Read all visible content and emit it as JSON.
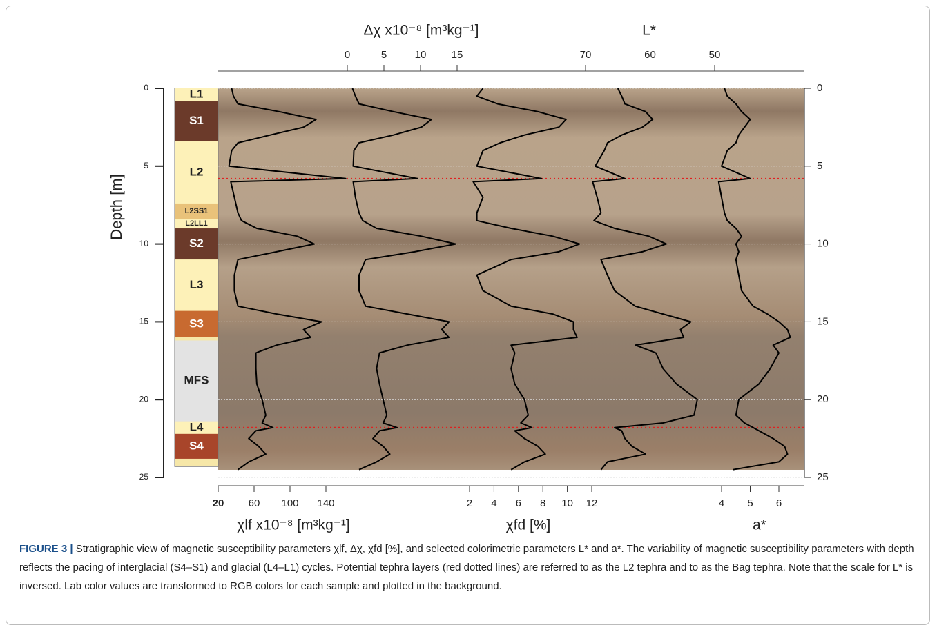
{
  "chart_data": {
    "type": "profile",
    "y_label": "Depth [m]",
    "ylim": [
      0,
      25
    ],
    "yticks": [
      0,
      5,
      10,
      15,
      20,
      25
    ],
    "grid": true,
    "depth": [
      0,
      0.5,
      1,
      1.5,
      2,
      2.5,
      3,
      3.5,
      4,
      5,
      5.8,
      6,
      7,
      8,
      8.5,
      9,
      9.5,
      10,
      10.5,
      11,
      12,
      13,
      14,
      14.5,
      15,
      15.5,
      16,
      16.5,
      17,
      18,
      19,
      20,
      21,
      21.5,
      21.8,
      22,
      22.5,
      23,
      23.5,
      24,
      24.5
    ],
    "tephra_depths": [
      5.8,
      21.8
    ],
    "tephra_color": "#e02020",
    "units": [
      {
        "label": "L1",
        "top": 0,
        "bottom": 0.8,
        "color": "#fdf1b8",
        "text_color": "#222222"
      },
      {
        "label": "S1",
        "top": 0.8,
        "bottom": 3.4,
        "color": "#6b3a2a",
        "text_color": "#ffffff"
      },
      {
        "label": "L2",
        "top": 3.4,
        "bottom": 7.4,
        "color": "#fdf1b8",
        "text_color": "#222222"
      },
      {
        "label": "L2SS1",
        "top": 7.4,
        "bottom": 8.4,
        "color": "#e9c27a",
        "text_color": "#222222"
      },
      {
        "label": "L2LL1",
        "top": 8.4,
        "bottom": 9.0,
        "color": "#fdf1b8",
        "text_color": "#222222"
      },
      {
        "label": "S2",
        "top": 9.0,
        "bottom": 11.0,
        "color": "#6b3a2a",
        "text_color": "#ffffff"
      },
      {
        "label": "L3",
        "top": 11.0,
        "bottom": 14.3,
        "color": "#fdf1b8",
        "text_color": "#222222"
      },
      {
        "label": "S3",
        "top": 14.3,
        "bottom": 16.0,
        "color": "#c86a30",
        "text_color": "#ffffff"
      },
      {
        "label": "MFS",
        "top": 16.2,
        "bottom": 21.4,
        "color": "#e3e3e3",
        "text_color": "#222222"
      },
      {
        "label": "L4",
        "top": 21.4,
        "bottom": 22.2,
        "color": "#fdf1b8",
        "text_color": "#222222"
      },
      {
        "label": "S4",
        "top": 22.2,
        "bottom": 23.8,
        "color": "#a8452a",
        "text_color": "#ffffff"
      }
    ],
    "series": [
      {
        "name": "χlf x10⁻⁸ [m³kg⁻¹]",
        "color": "#000000",
        "side": "bottom",
        "xlim": [
          20,
          160
        ],
        "xticks": [
          20,
          60,
          100,
          140
        ],
        "values": [
          35,
          37,
          42,
          88,
          129,
          115,
          78,
          42,
          35,
          32,
          162,
          34,
          38,
          42,
          46,
          63,
          108,
          127,
          85,
          42,
          38,
          38,
          42,
          85,
          135,
          115,
          123,
          85,
          62,
          62,
          63,
          69,
          73,
          69,
          81,
          62,
          54,
          65,
          73,
          54,
          42
        ]
      },
      {
        "name": "Δχ x10⁻⁸ [m³kg⁻¹]",
        "color": "#000000",
        "side": "top",
        "xlim": [
          0,
          15
        ],
        "xticks": [
          0,
          5,
          10,
          15
        ],
        "values": [
          0.7,
          1.1,
          1.6,
          6.3,
          11.5,
          10.1,
          6.3,
          1.6,
          0.9,
          0.8,
          9.6,
          0.8,
          1.1,
          1.6,
          2.1,
          4.0,
          10.1,
          14.8,
          9.2,
          2.5,
          1.6,
          1.6,
          2.5,
          8.2,
          13.9,
          12.9,
          13.9,
          8.2,
          4.4,
          4.0,
          4.4,
          4.9,
          5.4,
          4.9,
          6.8,
          4.4,
          3.5,
          4.9,
          5.8,
          4.0,
          1.6
        ]
      },
      {
        "name": "χfd [%]",
        "color": "#000000",
        "side": "bottom",
        "xlim": [
          2,
          12
        ],
        "xticks": [
          2,
          4,
          6,
          8,
          10,
          12
        ],
        "values": [
          3.1,
          2.6,
          4.3,
          7.6,
          9.9,
          9.3,
          6.5,
          4.5,
          3.1,
          2.6,
          7.9,
          2.3,
          3.1,
          2.6,
          2.6,
          5.4,
          8.8,
          11.0,
          9.3,
          5.4,
          2.6,
          3.1,
          5.4,
          8.8,
          10.5,
          10.5,
          10.8,
          5.4,
          5.7,
          5.4,
          5.7,
          6.5,
          6.8,
          6.2,
          7.1,
          5.7,
          6.5,
          7.6,
          8.2,
          6.5,
          5.4
        ]
      },
      {
        "name": "L*",
        "color": "#000000",
        "side": "top",
        "xlim": [
          70,
          50
        ],
        "xticks": [
          70,
          60,
          50
        ],
        "values": [
          65.0,
          64.4,
          63.9,
          60.7,
          59.6,
          61.2,
          64.4,
          66.6,
          67.1,
          68.5,
          63.9,
          68.9,
          68.2,
          67.6,
          68.7,
          65.5,
          60.2,
          57.5,
          61.2,
          67.6,
          66.6,
          65.5,
          62.3,
          58.0,
          53.7,
          55.3,
          54.8,
          62.3,
          59.1,
          58.0,
          55.9,
          52.7,
          53.2,
          58.0,
          65.5,
          64.4,
          63.9,
          62.8,
          60.7,
          66.6,
          67.6
        ]
      },
      {
        "name": "a*",
        "color": "#000000",
        "side": "bottom",
        "xlim": [
          4,
          6
        ],
        "xticks": [
          4,
          5,
          6
        ],
        "values": [
          4.1,
          4.2,
          4.5,
          4.7,
          5.0,
          4.8,
          4.6,
          4.5,
          4.2,
          4.0,
          5.0,
          3.9,
          4.0,
          4.1,
          4.2,
          4.5,
          4.7,
          4.5,
          4.6,
          4.5,
          4.6,
          4.7,
          5.1,
          5.6,
          6.0,
          6.3,
          6.4,
          5.8,
          6.0,
          5.7,
          5.3,
          4.6,
          4.5,
          4.8,
          5.1,
          5.3,
          5.8,
          6.2,
          6.3,
          6.0,
          4.4
        ]
      }
    ]
  },
  "caption": {
    "label": "FIGURE 3 |",
    "text": "Stratigraphic view of magnetic susceptibility parameters χlf, Δχ, χfd [%], and selected colorimetric parameters L* and a*. The variability of magnetic susceptibility parameters with depth reflects the pacing of interglacial (S4–S1) and glacial (L4–L1) cycles. Potential tephra layers (red dotted lines) are referred to as the L2 tephra and to as the Bag tephra. Note that the scale for L* is inversed. Lab color values are transformed to RGB colors for each sample and plotted in the background."
  }
}
